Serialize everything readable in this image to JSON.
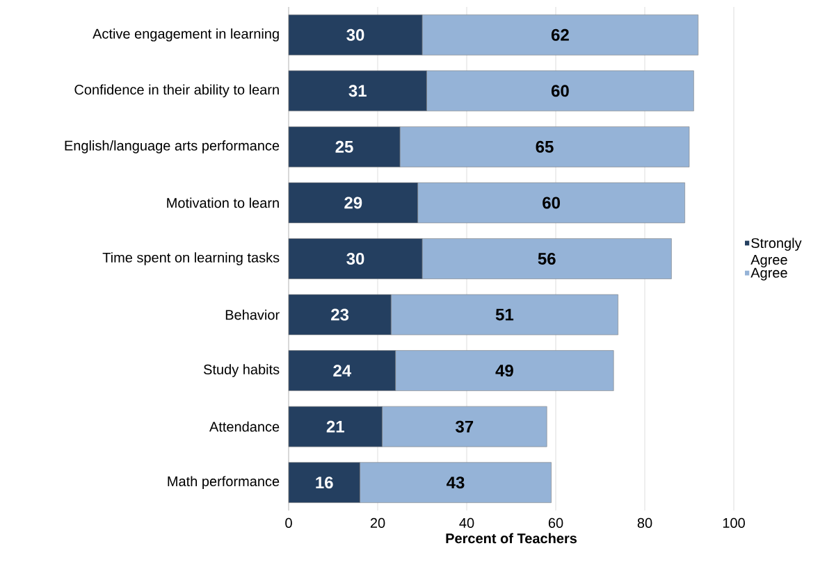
{
  "chart_data": {
    "type": "bar",
    "orientation": "horizontal",
    "stacked": true,
    "categories": [
      "Active engagement in learning",
      "Confidence in their ability to learn",
      "English/language arts performance",
      "Motivation to learn",
      "Time spent on learning tasks",
      "Behavior",
      "Study habits",
      "Attendance",
      "Math performance"
    ],
    "series": [
      {
        "name": "Strongly Agree",
        "color": "#243f60",
        "values": [
          30,
          31,
          25,
          29,
          30,
          23,
          24,
          21,
          16
        ]
      },
      {
        "name": "Agree",
        "color": "#95b3d7",
        "values": [
          62,
          60,
          65,
          60,
          56,
          51,
          49,
          37,
          43
        ]
      }
    ],
    "xlabel": "Percent of Teachers",
    "xlim": [
      0,
      100
    ],
    "xticks": [
      0,
      20,
      40,
      60,
      80,
      100
    ],
    "grid": "x",
    "legend": "right",
    "data_labels": true
  }
}
